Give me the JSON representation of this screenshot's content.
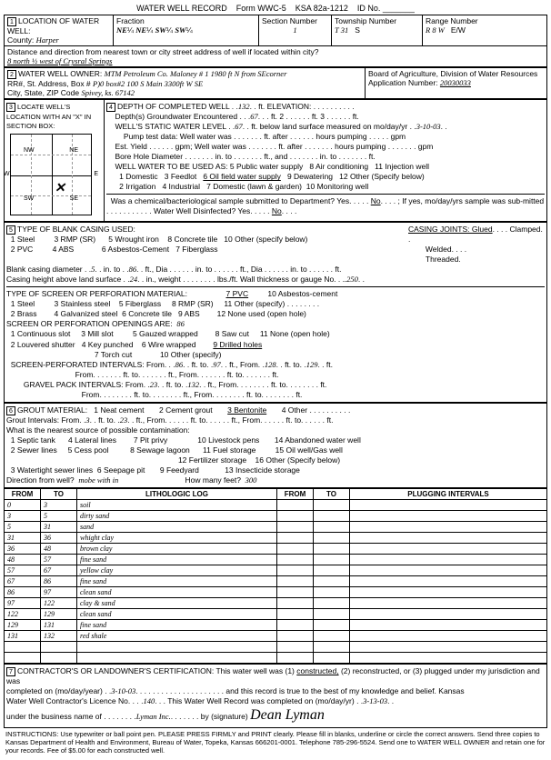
{
  "header": {
    "title": "WATER WELL RECORD",
    "form": "Form WWC-5",
    "ksa": "KSA 82a-1212",
    "id": "ID No."
  },
  "sec1": {
    "title": "LOCATION OF WATER WELL:",
    "county_lbl": "County:",
    "county": "Harper",
    "fraction": "Fraction",
    "f1": "NE",
    "f1q": "¼",
    "f2": "NE",
    "f2q": "¼",
    "f3": "SW",
    "f3q": "¼",
    "f4": "SW",
    "f4q": "¼",
    "section_lbl": "Section Number",
    "section": "1",
    "township_lbl": "Township Number",
    "township": "T  31",
    "township_s": "S",
    "range_lbl": "Range Number",
    "range": "R  8 W",
    "range_ew": "E/W",
    "dist_lbl": "Distance and direction from nearest town or city street address of well if located within city?",
    "dist": "8 north ½ west of Crysral Springs"
  },
  "sec2": {
    "title": "WATER WELL OWNER:",
    "owner": "MTM Petroleum Co. Maloney # 1 1980 ft N from SEcorner",
    "addr_lbl": "RR#, St. Address, Box #",
    "addr": "P)0 box#2 100 S Main          3300ft W SE",
    "city_lbl": "City, State, ZIP Code",
    "city": "Spivey, ks. 67142",
    "board": "Board of Agriculture, Division of Water Resources",
    "appnum_lbl": "Application Number:",
    "appnum": "20030033"
  },
  "sec3": {
    "title": "LOCATE WELL'S LOCATION WITH AN \"X\" IN SECTION BOX:"
  },
  "sec4": {
    "title": "DEPTH OF COMPLETED WELL",
    "depth": "132",
    "depth_ft": "ft.",
    "elev": "ELEVATION:",
    "gw_lbl": "Depth(s) Groundwater Encountered",
    "gw1": "67",
    "static_lbl": "WELL'S STATIC WATER LEVEL",
    "static": "67",
    "static_txt": "ft. below land surface measured on mo/day/yr",
    "static_date": "3-10-03",
    "pump_lbl": "Pump test data:  Well water was",
    "est_lbl": "Est. Yield",
    "bore_lbl": "Bore Hole Diameter",
    "use_lbl": "WELL WATER TO BE USED AS:",
    "u5": "5 Public water supply",
    "u8": "8 Air conditioning",
    "u11": "11 Injection well",
    "u1": "1 Domestic",
    "u3": "3 Feedlot",
    "u6": "6 Oil field water supply",
    "u9": "9 Dewatering",
    "u12": "12 Other (Specify below)",
    "u2": "2 Irrigation",
    "u4": "4 Industrial",
    "u7": "7 Domestic (lawn & garden)",
    "u10": "10 Monitoring well",
    "chem_lbl": "Was a chemical/bacteriological sample submitted to Department? Yes",
    "no": "No",
    "chem2": "; If yes, mo/day/yrs sample was sub-mitted",
    "disinfect": "Water Well Disinfected?   Yes",
    "disinfect_no": "No"
  },
  "sec5": {
    "title": "TYPE OF BLANK CASING USED:",
    "c1": "1 Steel",
    "c3": "3 RMP (SR)",
    "c5": "5 Wrought iron",
    "c8": "8 Concrete tile",
    "c10": "10 Other (specify below)",
    "c2": "2 PVC",
    "c4": "4 ABS",
    "c6": "6 Asbestos-Cement",
    "c7": "7 Fiberglass",
    "joints": "CASING JOINTS: Glued",
    "welded": "Welded",
    "clamped": "Clamped",
    "threaded": "Threaded",
    "blank_dia_lbl": "Blank casing diameter",
    "blank_dia": "5",
    "blank_to": "86",
    "height_lbl": "Casing height above land surface",
    "height": "24",
    "gauge": "Wall thickness or gauge No.",
    "gauge_v": ".250",
    "screen_lbl": "TYPE OF SCREEN OR PERFORATION MATERIAL:",
    "s1": "1 Steel",
    "s3": "3 Stainless steel",
    "s5": "5 Fiberglass",
    "s7": "7 PVC",
    "s8": "8 RMP (SR)",
    "s10": "10 Asbestos-cement",
    "s11": "11 Other (specify)",
    "s2": "2 Brass",
    "s4": "4 Galvanized steel",
    "s6": "6 Concrete tile",
    "s9": "9 ABS",
    "s12": "12 None used (open hole)",
    "open_lbl": "SCREEN OR PERFORATION OPENINGS ARE:",
    "open_v": "86",
    "o1": "1 Continuous slot",
    "o3": "3 Mill slot",
    "o5": "5 Gauzed wrapped",
    "o8": "8 Saw cut",
    "o11": "11 None (open hole)",
    "o2": "2 Louvered shutter",
    "o4": "4 Key punched",
    "o6": "6 Wire wrapped",
    "o7": "7 Torch cut",
    "o9": "9 Drilled holes",
    "o10": "10 Other (specify)",
    "sp_lbl": "SCREEN-PERFORATED INTERVALS:",
    "sp_from": "86",
    "sp_to": "97",
    "sp_from2": "128",
    "sp_to2": "129",
    "gp_lbl": "GRAVEL PACK INTERVALS:",
    "gp_from": "23",
    "gp_to": "132"
  },
  "sec6": {
    "title": "GROUT MATERIAL:",
    "g1": "1 Neat cement",
    "g2": "2 Cement grout",
    "g3": "3 Bentonite",
    "g4": "4 Other",
    "gi_lbl": "Grout Intervals:  From",
    "gi_from": "3",
    "gi_to": "23",
    "contam_lbl": "What is the nearest source of possible contamination:",
    "p1": "1 Septic tank",
    "p4": "4 Lateral lines",
    "p7": "7 Pit privy",
    "p10": "10 Livestock pens",
    "p14": "14 Abandoned water well",
    "p2": "2 Sewer lines",
    "p5": "5 Cess pool",
    "p8": "8 Sewage lagoon",
    "p11": "11 Fuel storage",
    "p15": "15 Oil well/Gas well",
    "p3": "3 Watertight sewer lines",
    "p6": "6 Seepage pit",
    "p9": "9 Feedyard",
    "p12": "12 Fertilizer storage",
    "p16": "16 Other (Specify below)",
    "p13": "13 Insecticide storage",
    "dir_lbl": "Direction from well?",
    "dir": "mobe with in",
    "feet_lbl": "How many feet?",
    "feet": "300"
  },
  "log": {
    "h_from": "FROM",
    "h_to": "TO",
    "h_lith": "LITHOLOGIC LOG",
    "h_plug": "PLUGGING INTERVALS",
    "rows": [
      {
        "f": "0",
        "t": "3",
        "l": "soil"
      },
      {
        "f": "3",
        "t": "5",
        "l": "dirty sand"
      },
      {
        "f": "5",
        "t": "31",
        "l": "sand"
      },
      {
        "f": "31",
        "t": "36",
        "l": "whight clay"
      },
      {
        "f": "36",
        "t": "48",
        "l": "brown clay"
      },
      {
        "f": "48",
        "t": "57",
        "l": "fine sand"
      },
      {
        "f": "57",
        "t": "67",
        "l": "yellow clay"
      },
      {
        "f": "67",
        "t": "86",
        "l": "fine sand"
      },
      {
        "f": "86",
        "t": "97",
        "l": "clean sand"
      },
      {
        "f": "97",
        "t": "122",
        "l": "clay & sand"
      },
      {
        "f": "122",
        "t": "129",
        "l": "clean sand"
      },
      {
        "f": "129",
        "t": "131",
        "l": "fine sand"
      },
      {
        "f": "131",
        "t": "132",
        "l": "red shale"
      }
    ]
  },
  "sec7": {
    "title": "CONTRACTOR'S OR LANDOWNER'S CERTIFICATION:",
    "text1": "This water well was (1)",
    "constructed": "constructed,",
    "text2": "(2) reconstructed, or (3) plugged under my jurisdiction and was",
    "comp_lbl": "completed on (mo/day/year)",
    "comp": "3-10-03",
    "text3": "and this record is true to the best of my knowledge and belief. Kansas",
    "lic_lbl": "Water Well Contractor's Licence No.",
    "lic": "140",
    "text4": "This Water Well Record was completed on (mo/day/yr)",
    "comp2": "3-13-03",
    "bus_lbl": "under the business name of",
    "bus": "Lyman Inc.",
    "sig_lbl": "by (signature)",
    "sig": "Dean Lyman"
  },
  "footer": "INSTRUCTIONS: Use typewriter or ball point pen. PLEASE PRESS FIRMLY and PRINT clearly. Please fill in blanks, underline or circle the correct answers. Send three copies to Kansas Department of Health and Environment, Bureau of Water, Topeka, Kansas 666201-0001. Telephone 785-296-5524. Send one to WATER WELL OWNER and retain one for your records. Fee of $5.00 for each constructed well."
}
